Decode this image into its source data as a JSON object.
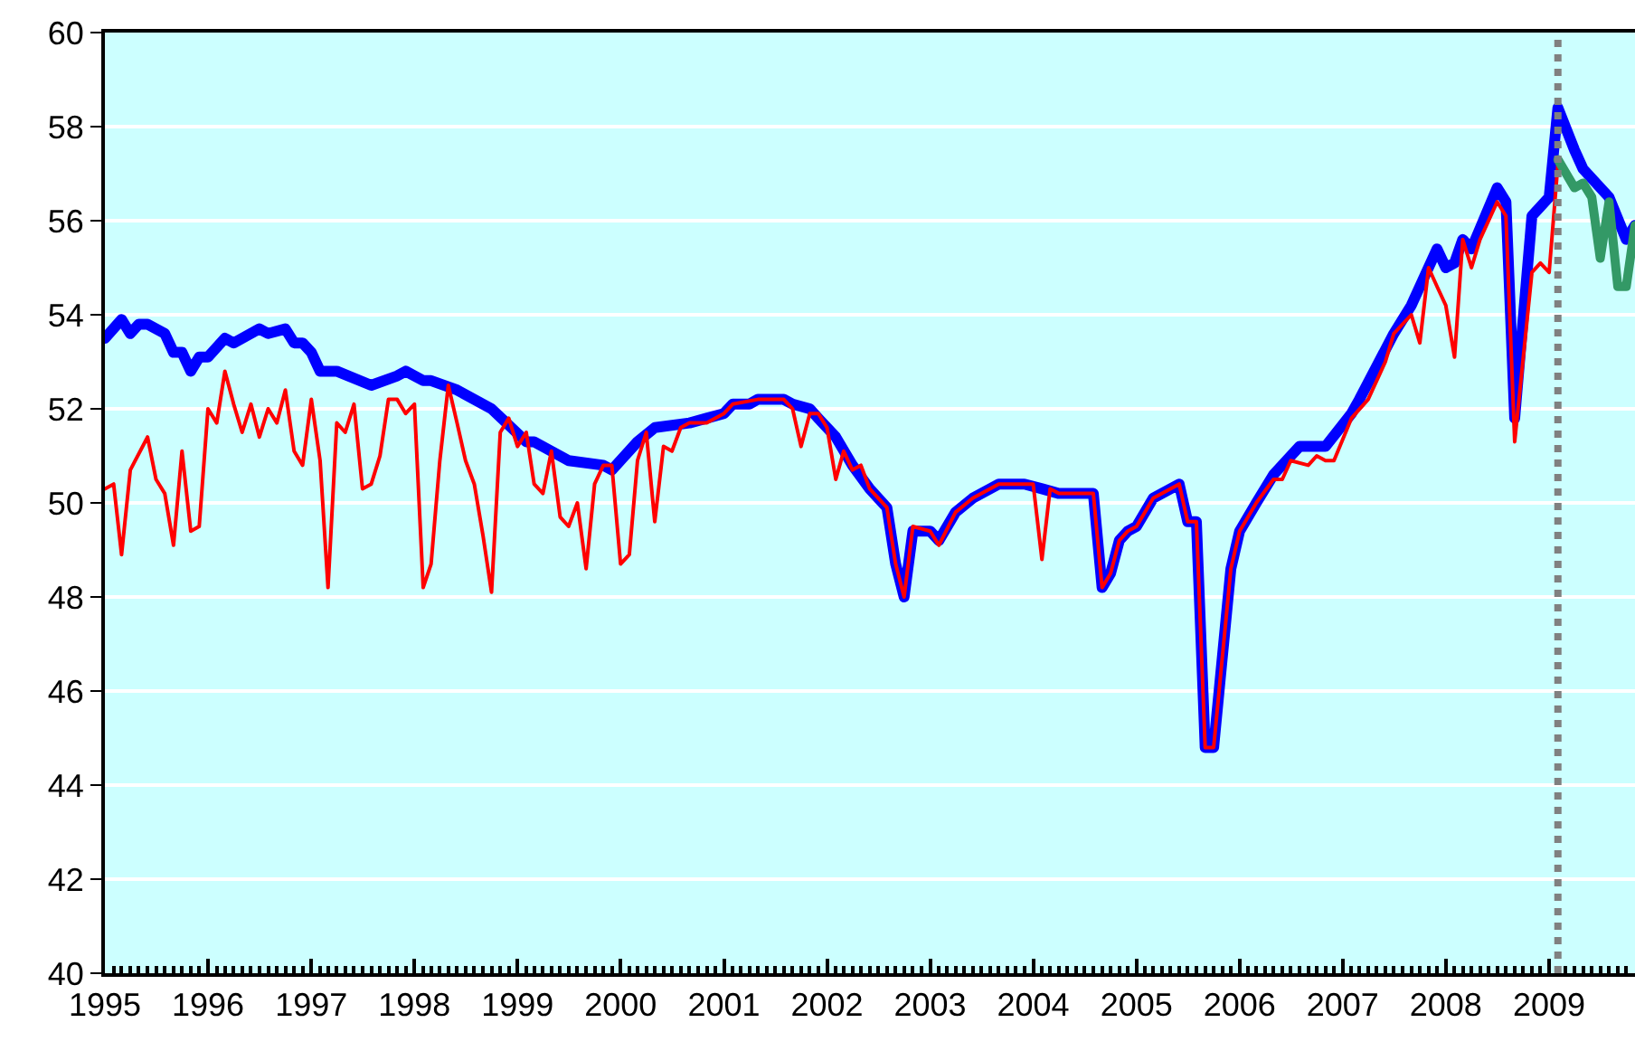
{
  "chart_data": {
    "type": "line",
    "xlim": [
      "1995-01",
      "2009-11"
    ],
    "xticks": [
      "1995",
      "1996",
      "1997",
      "1998",
      "1999",
      "2000",
      "2001",
      "2002",
      "2003",
      "2004",
      "2005",
      "2006",
      "2007",
      "2008",
      "2009"
    ],
    "ylim": [
      40,
      60
    ],
    "yticks": [
      40,
      42,
      44,
      46,
      48,
      50,
      52,
      54,
      56,
      58,
      60
    ],
    "grid": "y",
    "legend": false,
    "marker": "none",
    "series": [
      {
        "color": "#0000ff",
        "x": [
          "1995-01",
          "1995-03",
          "1995-04",
          "1995-05",
          "1995-06",
          "1995-08",
          "1995-09",
          "1995-10",
          "1995-11",
          "1995-12",
          "1996-01",
          "1996-03",
          "1996-04",
          "1996-07",
          "1996-08",
          "1996-10",
          "1996-11",
          "1996-12",
          "1997-01",
          "1997-02",
          "1997-04",
          "1997-08",
          "1997-11",
          "1997-12",
          "1998-02",
          "1998-03",
          "1998-06",
          "1998-10",
          "1999-02",
          "1999-03",
          "1999-07",
          "1999-11",
          "1999-12",
          "2000-03",
          "2000-05",
          "2000-09",
          "2000-11",
          "2001-01",
          "2001-02",
          "2001-04",
          "2001-05",
          "2001-08",
          "2001-09",
          "2001-11",
          "2001-12",
          "2002-02",
          "2002-04",
          "2002-06",
          "2002-08",
          "2002-09",
          "2002-10",
          "2002-11",
          "2003-01",
          "2003-02",
          "2003-04",
          "2003-06",
          "2003-09",
          "2003-12",
          "2004-02",
          "2004-04",
          "2004-08",
          "2004-09",
          "2004-10",
          "2004-11",
          "2004-12",
          "2005-01",
          "2005-03",
          "2005-06",
          "2005-07",
          "2005-08",
          "2005-09",
          "2005-10",
          "2005-12",
          "2006-01",
          "2006-03",
          "2006-05",
          "2006-08",
          "2006-11",
          "2007-02",
          "2007-03",
          "2007-07",
          "2007-09",
          "2007-12",
          "2008-01",
          "2008-02",
          "2008-03",
          "2008-04",
          "2008-07",
          "2008-08",
          "2008-09",
          "2008-11",
          "2009-01",
          "2009-02",
          "2009-04",
          "2009-05",
          "2009-08",
          "2009-10",
          "2009-11"
        ],
        "values": [
          53.5,
          53.9,
          53.6,
          53.8,
          53.8,
          53.6,
          53.2,
          53.2,
          52.8,
          53.1,
          53.1,
          53.5,
          53.4,
          53.7,
          53.6,
          53.7,
          53.4,
          53.4,
          53.2,
          52.8,
          52.8,
          52.5,
          52.7,
          52.8,
          52.6,
          52.6,
          52.4,
          52.0,
          51.3,
          51.3,
          50.9,
          50.8,
          50.7,
          51.3,
          51.6,
          51.7,
          51.8,
          51.9,
          52.1,
          52.1,
          52.2,
          52.2,
          52.1,
          52.0,
          51.8,
          51.4,
          50.8,
          50.3,
          49.9,
          48.7,
          48.0,
          49.4,
          49.4,
          49.2,
          49.8,
          50.1,
          50.4,
          50.4,
          50.3,
          50.2,
          50.2,
          48.2,
          48.5,
          49.2,
          49.4,
          49.5,
          50.1,
          50.4,
          49.6,
          49.6,
          44.8,
          44.8,
          48.6,
          49.4,
          50.0,
          50.6,
          51.2,
          51.2,
          51.9,
          52.2,
          53.6,
          54.2,
          55.4,
          55.0,
          55.1,
          55.6,
          55.4,
          56.7,
          56.4,
          51.8,
          56.1,
          56.5,
          58.4,
          57.5,
          57.1,
          56.5,
          55.6,
          55.9
        ]
      },
      {
        "color": "#ff0000",
        "x": [
          "1995-01",
          "1995-02",
          "1995-03",
          "1995-04",
          "1995-06",
          "1995-07",
          "1995-08",
          "1995-09",
          "1995-10",
          "1995-11",
          "1995-12",
          "1996-01",
          "1996-02",
          "1996-03",
          "1996-04",
          "1996-05",
          "1996-06",
          "1996-07",
          "1996-08",
          "1996-09",
          "1996-10",
          "1996-11",
          "1996-12",
          "1997-01",
          "1997-02",
          "1997-03",
          "1997-04",
          "1997-05",
          "1997-06",
          "1997-07",
          "1997-08",
          "1997-09",
          "1997-10",
          "1997-11",
          "1997-12",
          "1998-01",
          "1998-02",
          "1998-03",
          "1998-04",
          "1998-05",
          "1998-06",
          "1998-07",
          "1998-08",
          "1998-09",
          "1998-10",
          "1998-11",
          "1998-12",
          "1999-01",
          "1999-02",
          "1999-03",
          "1999-04",
          "1999-05",
          "1999-06",
          "1999-07",
          "1999-08",
          "1999-09",
          "1999-10",
          "1999-11",
          "1999-12",
          "2000-01",
          "2000-02",
          "2000-03",
          "2000-04",
          "2000-05",
          "2000-06",
          "2000-07",
          "2000-08",
          "2000-09",
          "2000-11",
          "2001-01",
          "2001-02",
          "2001-05",
          "2001-08",
          "2001-09",
          "2001-10",
          "2001-11",
          "2001-12",
          "2002-01",
          "2002-02",
          "2002-03",
          "2002-04",
          "2002-05",
          "2002-06",
          "2002-08",
          "2002-09",
          "2002-10",
          "2002-11",
          "2003-01",
          "2003-02",
          "2003-04",
          "2003-06",
          "2003-09",
          "2003-12",
          "2004-01",
          "2004-02",
          "2004-03",
          "2004-04",
          "2004-08",
          "2004-09",
          "2004-10",
          "2004-11",
          "2004-12",
          "2005-01",
          "2005-03",
          "2005-06",
          "2005-07",
          "2005-08",
          "2005-09",
          "2005-10",
          "2005-12",
          "2006-01",
          "2006-03",
          "2006-05",
          "2006-06",
          "2006-07",
          "2006-09",
          "2006-10",
          "2006-11",
          "2006-12",
          "2007-02",
          "2007-04",
          "2007-06",
          "2007-07",
          "2007-09",
          "2007-10",
          "2007-11",
          "2007-12",
          "2008-01",
          "2008-02",
          "2008-03",
          "2008-04",
          "2008-05",
          "2008-07",
          "2008-08",
          "2008-09",
          "2008-11",
          "2008-12",
          "2009-01",
          "2009-02"
        ],
        "values": [
          50.3,
          50.4,
          48.9,
          50.7,
          51.4,
          50.5,
          50.2,
          49.1,
          51.1,
          49.4,
          49.5,
          52.0,
          51.7,
          52.8,
          52.1,
          51.5,
          52.1,
          51.4,
          52.0,
          51.7,
          52.4,
          51.1,
          50.8,
          52.2,
          50.9,
          48.2,
          51.7,
          51.5,
          52.1,
          50.3,
          50.4,
          51.0,
          52.2,
          52.2,
          51.9,
          52.1,
          48.2,
          48.7,
          50.9,
          52.5,
          51.7,
          50.9,
          50.4,
          49.3,
          48.1,
          51.5,
          51.8,
          51.2,
          51.5,
          50.4,
          50.2,
          51.1,
          49.7,
          49.5,
          50.0,
          48.6,
          50.4,
          50.8,
          50.8,
          48.7,
          48.9,
          50.9,
          51.5,
          49.6,
          51.2,
          51.1,
          51.6,
          51.7,
          51.7,
          51.9,
          52.1,
          52.2,
          52.2,
          52.0,
          51.2,
          51.9,
          51.9,
          51.6,
          50.5,
          51.1,
          50.7,
          50.8,
          50.3,
          49.9,
          48.7,
          48.0,
          49.5,
          49.4,
          49.1,
          49.8,
          50.1,
          50.4,
          50.4,
          50.4,
          48.8,
          50.3,
          50.2,
          50.2,
          48.2,
          48.5,
          49.2,
          49.4,
          49.5,
          50.1,
          50.4,
          49.6,
          49.6,
          44.8,
          44.8,
          48.6,
          49.4,
          50.0,
          50.5,
          50.5,
          50.9,
          50.8,
          51.0,
          50.9,
          50.9,
          51.8,
          52.2,
          53.0,
          53.6,
          54.0,
          53.4,
          55.0,
          54.6,
          54.2,
          53.1,
          55.6,
          55.0,
          55.6,
          56.4,
          56.1,
          51.3,
          54.9,
          55.1,
          54.9,
          57.2
        ]
      },
      {
        "color": "#339966",
        "x": [
          "2009-02",
          "2009-04",
          "2009-05",
          "2009-06",
          "2009-07",
          "2009-08",
          "2009-09",
          "2009-10",
          "2009-11"
        ],
        "values": [
          57.3,
          56.7,
          56.8,
          56.5,
          55.2,
          56.4,
          54.6,
          54.6,
          55.9
        ]
      }
    ],
    "ref_lines": [
      {
        "axis": "x",
        "value": "2009-02",
        "color": "#808080",
        "line_style": "dotted"
      }
    ]
  }
}
